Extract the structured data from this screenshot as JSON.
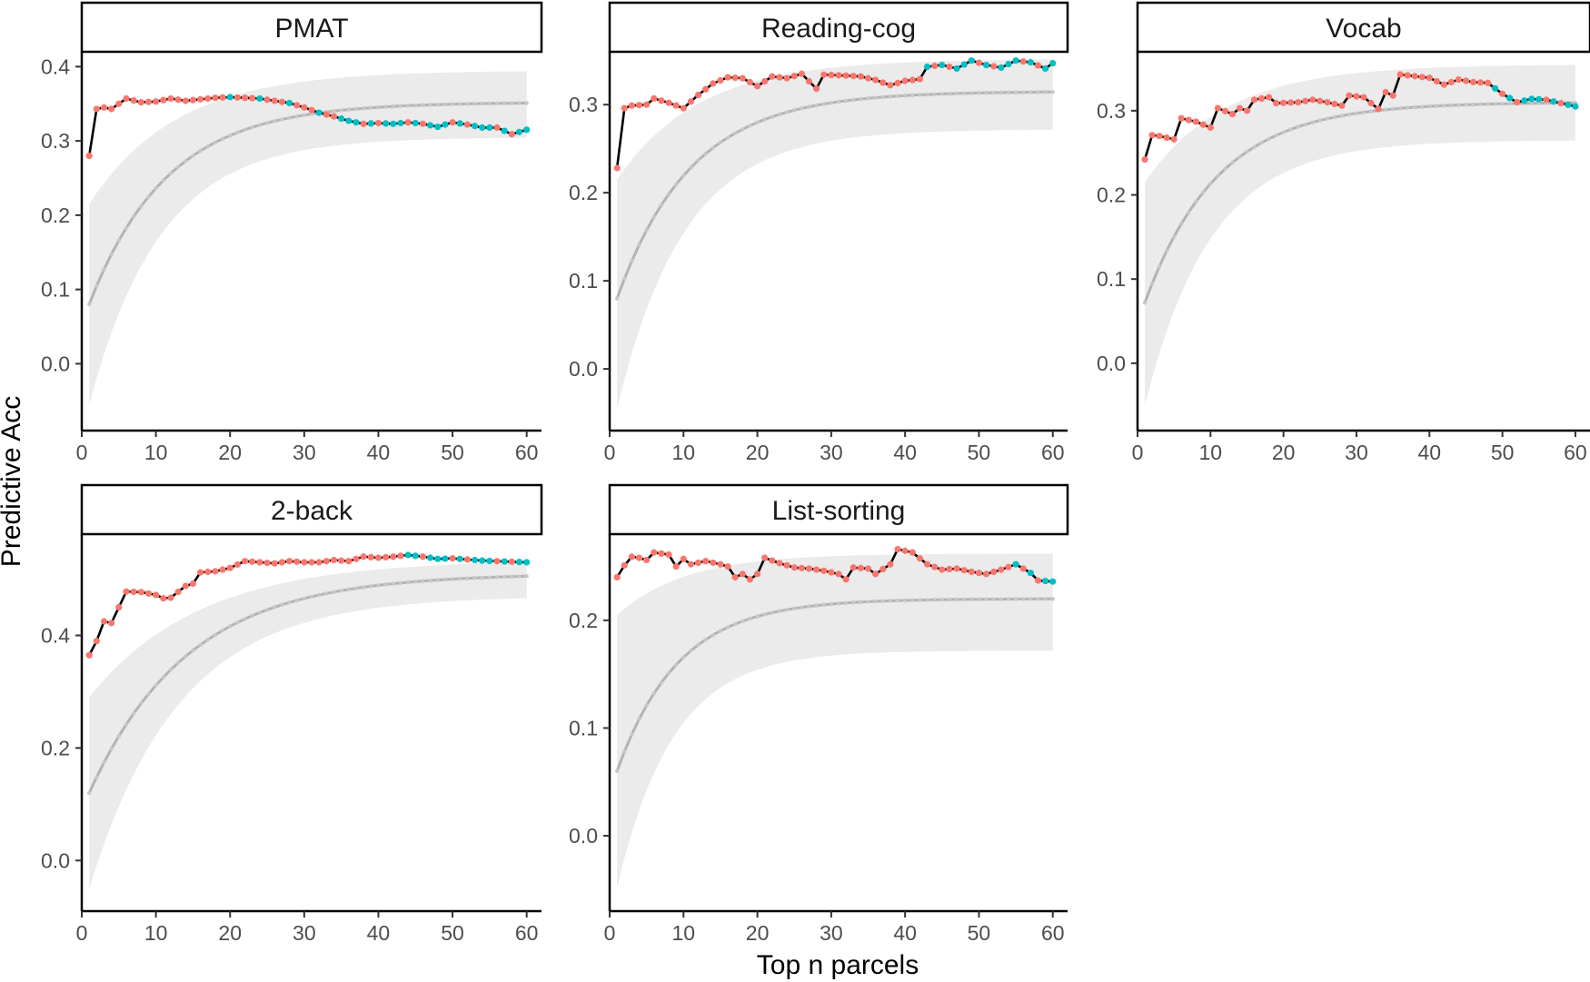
{
  "chart_data": {
    "type": "line",
    "xlabel": "Top n parcels",
    "ylabel": "Predictive Acc",
    "colors": {
      "observed_line": "#000000",
      "null_line": "#b3b3b3",
      "null_band": "#ebebeb",
      "point_red": "#f8766d",
      "point_teal": "#00bfc4"
    },
    "xlim": [
      0,
      62
    ],
    "x_ticks": [
      0,
      10,
      20,
      30,
      40,
      50,
      60
    ],
    "panels": [
      {
        "title": "PMAT",
        "ylim": [
          -0.09,
          0.42
        ],
        "y_ticks": [
          0.0,
          0.1,
          0.2,
          0.3,
          0.4
        ],
        "y_tick_labels": [
          "0.0",
          "0.1",
          "0.2",
          "0.3",
          "0.4"
        ],
        "observed_keys": [
          [
            1,
            0.28
          ],
          [
            2,
            0.343
          ],
          [
            3,
            0.345
          ],
          [
            4,
            0.343
          ],
          [
            6,
            0.357
          ],
          [
            8,
            0.352
          ],
          [
            10,
            0.353
          ],
          [
            12,
            0.357
          ],
          [
            14,
            0.354
          ],
          [
            16,
            0.356
          ],
          [
            18,
            0.358
          ],
          [
            20,
            0.359
          ],
          [
            22,
            0.358
          ],
          [
            24,
            0.357
          ],
          [
            26,
            0.354
          ],
          [
            28,
            0.351
          ],
          [
            30,
            0.345
          ],
          [
            32,
            0.338
          ],
          [
            34,
            0.333
          ],
          [
            36,
            0.327
          ],
          [
            38,
            0.323
          ],
          [
            40,
            0.324
          ],
          [
            42,
            0.323
          ],
          [
            44,
            0.325
          ],
          [
            46,
            0.323
          ],
          [
            48,
            0.319
          ],
          [
            50,
            0.325
          ],
          [
            52,
            0.322
          ],
          [
            54,
            0.318
          ],
          [
            56,
            0.318
          ],
          [
            58,
            0.309
          ],
          [
            60,
            0.315
          ]
        ],
        "null_asym": 0.352,
        "null_first": 0.08,
        "null_k": 0.095,
        "band_upper_asym": 0.395,
        "band_upper_first": 0.215,
        "band_lower_asym": 0.305,
        "band_lower_first": -0.055,
        "red_until": 16,
        "teal_after": 33
      },
      {
        "title": "Reading-cog",
        "ylim": [
          -0.07,
          0.36
        ],
        "y_ticks": [
          0.0,
          0.1,
          0.2,
          0.3
        ],
        "y_tick_labels": [
          "0.0",
          "0.1",
          "0.2",
          "0.3"
        ],
        "observed_keys": [
          [
            1,
            0.228
          ],
          [
            2,
            0.296
          ],
          [
            3,
            0.299
          ],
          [
            5,
            0.3
          ],
          [
            6,
            0.307
          ],
          [
            8,
            0.302
          ],
          [
            10,
            0.296
          ],
          [
            12,
            0.311
          ],
          [
            14,
            0.324
          ],
          [
            16,
            0.331
          ],
          [
            18,
            0.33
          ],
          [
            20,
            0.321
          ],
          [
            22,
            0.332
          ],
          [
            24,
            0.33
          ],
          [
            26,
            0.335
          ],
          [
            28,
            0.318
          ],
          [
            29,
            0.334
          ],
          [
            32,
            0.333
          ],
          [
            34,
            0.332
          ],
          [
            36,
            0.328
          ],
          [
            38,
            0.322
          ],
          [
            40,
            0.327
          ],
          [
            42,
            0.329
          ],
          [
            43,
            0.343
          ],
          [
            45,
            0.345
          ],
          [
            47,
            0.341
          ],
          [
            49,
            0.35
          ],
          [
            51,
            0.345
          ],
          [
            53,
            0.342
          ],
          [
            55,
            0.35
          ],
          [
            57,
            0.348
          ],
          [
            59,
            0.341
          ],
          [
            60,
            0.347
          ]
        ],
        "null_asym": 0.315,
        "null_first": 0.08,
        "null_k": 0.1,
        "band_upper_asym": 0.352,
        "band_upper_first": 0.215,
        "band_lower_asym": 0.272,
        "band_lower_first": -0.045,
        "red_until": 60,
        "teal_after": 42
      },
      {
        "title": "Vocab",
        "ylim": [
          -0.08,
          0.37
        ],
        "y_ticks": [
          0.0,
          0.1,
          0.2,
          0.3
        ],
        "y_tick_labels": [
          "0.0",
          "0.1",
          "0.2",
          "0.3"
        ],
        "observed_keys": [
          [
            1,
            0.242
          ],
          [
            2,
            0.271
          ],
          [
            3,
            0.27
          ],
          [
            4,
            0.268
          ],
          [
            5,
            0.266
          ],
          [
            6,
            0.291
          ],
          [
            8,
            0.287
          ],
          [
            10,
            0.28
          ],
          [
            11,
            0.303
          ],
          [
            13,
            0.296
          ],
          [
            14,
            0.303
          ],
          [
            15,
            0.3
          ],
          [
            16,
            0.313
          ],
          [
            18,
            0.316
          ],
          [
            19,
            0.309
          ],
          [
            22,
            0.31
          ],
          [
            24,
            0.313
          ],
          [
            26,
            0.31
          ],
          [
            28,
            0.306
          ],
          [
            29,
            0.318
          ],
          [
            31,
            0.316
          ],
          [
            33,
            0.302
          ],
          [
            34,
            0.322
          ],
          [
            35,
            0.318
          ],
          [
            36,
            0.343
          ],
          [
            38,
            0.341
          ],
          [
            40,
            0.339
          ],
          [
            42,
            0.331
          ],
          [
            44,
            0.337
          ],
          [
            46,
            0.334
          ],
          [
            48,
            0.333
          ],
          [
            50,
            0.32
          ],
          [
            52,
            0.31
          ],
          [
            54,
            0.314
          ],
          [
            56,
            0.313
          ],
          [
            58,
            0.309
          ],
          [
            60,
            0.305
          ]
        ],
        "null_asym": 0.31,
        "null_first": 0.072,
        "null_k": 0.1,
        "band_upper_asym": 0.355,
        "band_upper_first": 0.215,
        "band_lower_asym": 0.265,
        "band_lower_first": -0.05,
        "red_until": 60,
        "teal_after": 48
      },
      {
        "title": "2-back",
        "ylim": [
          -0.09,
          0.58
        ],
        "y_ticks": [
          0.0,
          0.2,
          0.4
        ],
        "y_tick_labels": [
          "0.0",
          "0.2",
          "0.4"
        ],
        "observed_keys": [
          [
            1,
            0.365
          ],
          [
            2,
            0.39
          ],
          [
            3,
            0.425
          ],
          [
            4,
            0.422
          ],
          [
            5,
            0.45
          ],
          [
            6,
            0.478
          ],
          [
            8,
            0.477
          ],
          [
            10,
            0.472
          ],
          [
            11,
            0.466
          ],
          [
            12,
            0.467
          ],
          [
            14,
            0.488
          ],
          [
            15,
            0.492
          ],
          [
            16,
            0.512
          ],
          [
            18,
            0.514
          ],
          [
            20,
            0.52
          ],
          [
            22,
            0.532
          ],
          [
            24,
            0.53
          ],
          [
            26,
            0.528
          ],
          [
            28,
            0.532
          ],
          [
            30,
            0.53
          ],
          [
            32,
            0.53
          ],
          [
            34,
            0.534
          ],
          [
            36,
            0.532
          ],
          [
            38,
            0.54
          ],
          [
            40,
            0.538
          ],
          [
            42,
            0.54
          ],
          [
            44,
            0.543
          ],
          [
            46,
            0.54
          ],
          [
            48,
            0.536
          ],
          [
            50,
            0.537
          ],
          [
            52,
            0.535
          ],
          [
            54,
            0.533
          ],
          [
            56,
            0.532
          ],
          [
            58,
            0.531
          ],
          [
            60,
            0.53
          ]
        ],
        "null_asym": 0.51,
        "null_first": 0.12,
        "null_k": 0.075,
        "band_upper_asym": 0.535,
        "band_upper_first": 0.29,
        "band_lower_asym": 0.47,
        "band_lower_first": -0.05,
        "red_until": 40,
        "teal_after": 44
      },
      {
        "title": "List-sorting",
        "ylim": [
          -0.07,
          0.28
        ],
        "y_ticks": [
          0.0,
          0.1,
          0.2
        ],
        "y_tick_labels": [
          "0.0",
          "0.1",
          "0.2"
        ],
        "observed_keys": [
          [
            1,
            0.24
          ],
          [
            2,
            0.251
          ],
          [
            3,
            0.259
          ],
          [
            4,
            0.258
          ],
          [
            5,
            0.256
          ],
          [
            6,
            0.263
          ],
          [
            8,
            0.261
          ],
          [
            9,
            0.25
          ],
          [
            10,
            0.257
          ],
          [
            11,
            0.252
          ],
          [
            13,
            0.255
          ],
          [
            15,
            0.252
          ],
          [
            16,
            0.25
          ],
          [
            17,
            0.24
          ],
          [
            18,
            0.243
          ],
          [
            19,
            0.238
          ],
          [
            20,
            0.243
          ],
          [
            21,
            0.258
          ],
          [
            23,
            0.253
          ],
          [
            25,
            0.249
          ],
          [
            27,
            0.248
          ],
          [
            29,
            0.246
          ],
          [
            31,
            0.243
          ],
          [
            32,
            0.238
          ],
          [
            33,
            0.249
          ],
          [
            35,
            0.248
          ],
          [
            36,
            0.243
          ],
          [
            38,
            0.252
          ],
          [
            39,
            0.266
          ],
          [
            41,
            0.263
          ],
          [
            43,
            0.252
          ],
          [
            45,
            0.247
          ],
          [
            47,
            0.248
          ],
          [
            49,
            0.245
          ],
          [
            51,
            0.243
          ],
          [
            53,
            0.247
          ],
          [
            55,
            0.252
          ],
          [
            57,
            0.244
          ],
          [
            58,
            0.237
          ],
          [
            60,
            0.236
          ]
        ],
        "null_asym": 0.22,
        "null_first": 0.06,
        "null_k": 0.12,
        "band_upper_asym": 0.262,
        "band_upper_first": 0.205,
        "band_lower_asym": 0.172,
        "band_lower_first": -0.048,
        "red_until": 60,
        "teal_after": 54
      }
    ]
  }
}
